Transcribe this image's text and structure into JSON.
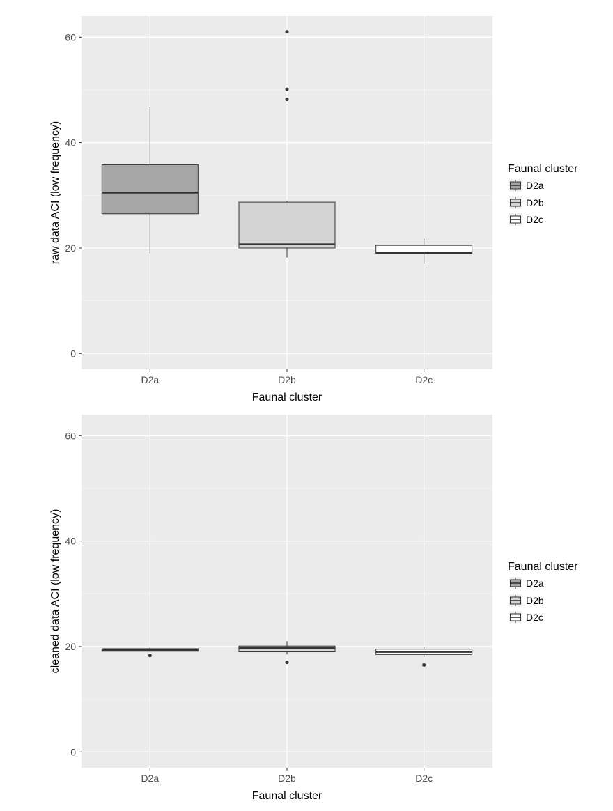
{
  "chart_data": [
    {
      "type": "boxplot",
      "xlabel": "Faunal cluster",
      "ylabel": "raw data ACI (low frequency)",
      "categories": [
        "D2a",
        "D2b",
        "D2c"
      ],
      "ylim": [
        -3,
        64
      ],
      "yticks": [
        0,
        20,
        40,
        60
      ],
      "grid": true,
      "legend": {
        "title": "Faunal cluster",
        "placement": "right",
        "entries": [
          "D2a",
          "D2b",
          "D2c"
        ]
      },
      "boxes": [
        {
          "category": "D2a",
          "whisker_low": 19,
          "q1": 26.5,
          "median": 30.5,
          "q3": 35.8,
          "whisker_high": 46.8,
          "outliers": [],
          "fill": "#a6a6a6"
        },
        {
          "category": "D2b",
          "whisker_low": 18.2,
          "q1": 20.0,
          "median": 20.7,
          "q3": 28.7,
          "whisker_high": 29.0,
          "outliers": [
            61.0,
            50.1,
            48.2
          ],
          "fill": "#d4d4d4"
        },
        {
          "category": "D2c",
          "whisker_low": 17.0,
          "q1": 19.0,
          "median": 19.1,
          "q3": 20.5,
          "whisker_high": 21.8,
          "outliers": [],
          "fill": "#ffffff"
        }
      ]
    },
    {
      "type": "boxplot",
      "xlabel": "Faunal cluster",
      "ylabel": "cleaned data ACI (low frequency)",
      "categories": [
        "D2a",
        "D2b",
        "D2c"
      ],
      "ylim": [
        -3,
        64
      ],
      "yticks": [
        0,
        20,
        40,
        60
      ],
      "grid": true,
      "legend": {
        "title": "Faunal cluster",
        "placement": "right",
        "entries": [
          "D2a",
          "D2b",
          "D2c"
        ]
      },
      "boxes": [
        {
          "category": "D2a",
          "whisker_low": 19.0,
          "q1": 19.1,
          "median": 19.3,
          "q3": 19.6,
          "whisker_high": 19.8,
          "outliers": [
            18.3
          ],
          "fill": "#a6a6a6"
        },
        {
          "category": "D2b",
          "whisker_low": 18.5,
          "q1": 19.0,
          "median": 19.7,
          "q3": 20.1,
          "whisker_high": 21.0,
          "outliers": [
            17.0
          ],
          "fill": "#d4d4d4"
        },
        {
          "category": "D2c",
          "whisker_low": 18.0,
          "q1": 18.5,
          "median": 19.0,
          "q3": 19.5,
          "whisker_high": 19.9,
          "outliers": [
            16.5
          ],
          "fill": "#ffffff"
        }
      ]
    }
  ]
}
